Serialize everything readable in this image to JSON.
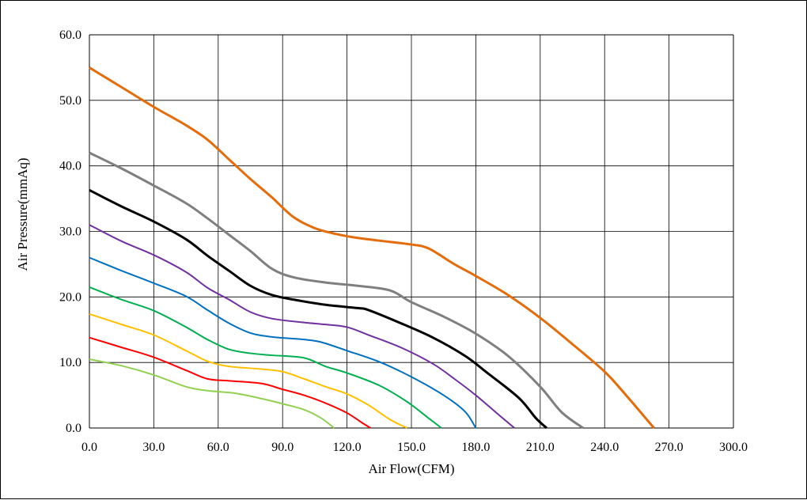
{
  "chart_data": {
    "type": "line",
    "title": "",
    "xlabel": "Air Flow(CFM)",
    "ylabel": "Air Pressure(mmAq)",
    "xlim": [
      0,
      300
    ],
    "ylim": [
      0,
      60
    ],
    "xticks": [
      "0.0",
      "30.0",
      "60.0",
      "90.0",
      "120.0",
      "150.0",
      "180.0",
      "210.0",
      "240.0",
      "270.0",
      "300.0"
    ],
    "yticks": [
      "0.0",
      "10.0",
      "20.0",
      "30.0",
      "40.0",
      "50.0",
      "60.0"
    ],
    "grid": true,
    "legend": "none",
    "series": [
      {
        "color": "#e46c0a",
        "points": [
          [
            0,
            55
          ],
          [
            15,
            52
          ],
          [
            30,
            49
          ],
          [
            45,
            46.2
          ],
          [
            55,
            44
          ],
          [
            65,
            41
          ],
          [
            75,
            38
          ],
          [
            85,
            35.2
          ],
          [
            95,
            32.2
          ],
          [
            105,
            30.5
          ],
          [
            115,
            29.6
          ],
          [
            125,
            29
          ],
          [
            140,
            28.4
          ],
          [
            150,
            28
          ],
          [
            158,
            27.4
          ],
          [
            170,
            25
          ],
          [
            180,
            23.2
          ],
          [
            195,
            20.3
          ],
          [
            210,
            16.8
          ],
          [
            225,
            12.8
          ],
          [
            240,
            8.6
          ],
          [
            250,
            5
          ],
          [
            263,
            0
          ]
        ]
      },
      {
        "color": "#7f7f7f",
        "points": [
          [
            0,
            42
          ],
          [
            15,
            39.6
          ],
          [
            30,
            37
          ],
          [
            45,
            34.3
          ],
          [
            55,
            32
          ],
          [
            65,
            29.5
          ],
          [
            75,
            27
          ],
          [
            85,
            24.3
          ],
          [
            95,
            23
          ],
          [
            110,
            22.2
          ],
          [
            125,
            21.7
          ],
          [
            140,
            21
          ],
          [
            150,
            19.2
          ],
          [
            165,
            17
          ],
          [
            180,
            14.4
          ],
          [
            195,
            11
          ],
          [
            210,
            6.3
          ],
          [
            220,
            2.4
          ],
          [
            230,
            0
          ]
        ]
      },
      {
        "color": "#000000",
        "points": [
          [
            0,
            36.3
          ],
          [
            15,
            33.8
          ],
          [
            30,
            31.5
          ],
          [
            45,
            28.8
          ],
          [
            55,
            26.3
          ],
          [
            65,
            24
          ],
          [
            75,
            21.7
          ],
          [
            85,
            20.3
          ],
          [
            95,
            19.6
          ],
          [
            110,
            18.8
          ],
          [
            125,
            18.3
          ],
          [
            130,
            18
          ],
          [
            145,
            16
          ],
          [
            160,
            13.8
          ],
          [
            175,
            11
          ],
          [
            185,
            8.5
          ],
          [
            200,
            4.6
          ],
          [
            208,
            1.5
          ],
          [
            213,
            0
          ]
        ]
      },
      {
        "color": "#7030a0",
        "points": [
          [
            0,
            31
          ],
          [
            15,
            28.5
          ],
          [
            30,
            26.4
          ],
          [
            45,
            23.8
          ],
          [
            55,
            21.4
          ],
          [
            65,
            19.6
          ],
          [
            75,
            17.7
          ],
          [
            85,
            16.7
          ],
          [
            100,
            16.1
          ],
          [
            110,
            15.8
          ],
          [
            120,
            15.4
          ],
          [
            130,
            14.2
          ],
          [
            145,
            12.3
          ],
          [
            160,
            9.8
          ],
          [
            170,
            7.5
          ],
          [
            180,
            5
          ],
          [
            190,
            2.2
          ],
          [
            198,
            0
          ]
        ]
      },
      {
        "color": "#0070c0",
        "points": [
          [
            0,
            26
          ],
          [
            15,
            24
          ],
          [
            30,
            22.1
          ],
          [
            45,
            20.1
          ],
          [
            55,
            18
          ],
          [
            65,
            16
          ],
          [
            75,
            14.5
          ],
          [
            85,
            13.9
          ],
          [
            100,
            13.5
          ],
          [
            108,
            13.1
          ],
          [
            120,
            11.8
          ],
          [
            135,
            10.1
          ],
          [
            150,
            7.8
          ],
          [
            165,
            5
          ],
          [
            175,
            2.5
          ],
          [
            180,
            0
          ]
        ]
      },
      {
        "color": "#00b050",
        "points": [
          [
            0,
            21.5
          ],
          [
            15,
            19.6
          ],
          [
            30,
            17.9
          ],
          [
            45,
            15.4
          ],
          [
            55,
            13.5
          ],
          [
            65,
            12
          ],
          [
            75,
            11.4
          ],
          [
            85,
            11.1
          ],
          [
            100,
            10.7
          ],
          [
            110,
            9.4
          ],
          [
            120,
            8.4
          ],
          [
            135,
            6.5
          ],
          [
            148,
            4
          ],
          [
            158,
            1.5
          ],
          [
            164,
            0
          ]
        ]
      },
      {
        "color": "#ffc000",
        "points": [
          [
            0,
            17.4
          ],
          [
            15,
            15.8
          ],
          [
            30,
            14.2
          ],
          [
            45,
            11.8
          ],
          [
            55,
            10.2
          ],
          [
            65,
            9.4
          ],
          [
            80,
            9
          ],
          [
            90,
            8.6
          ],
          [
            100,
            7.5
          ],
          [
            110,
            6.3
          ],
          [
            120,
            5.2
          ],
          [
            130,
            3.5
          ],
          [
            140,
            1.3
          ],
          [
            148,
            0
          ]
        ]
      },
      {
        "color": "#ff0000",
        "points": [
          [
            0,
            13.8
          ],
          [
            15,
            12.3
          ],
          [
            30,
            10.8
          ],
          [
            45,
            8.8
          ],
          [
            55,
            7.5
          ],
          [
            65,
            7.2
          ],
          [
            80,
            6.8
          ],
          [
            90,
            5.9
          ],
          [
            100,
            5
          ],
          [
            110,
            3.8
          ],
          [
            120,
            2.3
          ],
          [
            127,
            0.8
          ],
          [
            131,
            0
          ]
        ]
      },
      {
        "color": "#92d050",
        "points": [
          [
            0,
            10.5
          ],
          [
            15,
            9.5
          ],
          [
            30,
            8.1
          ],
          [
            45,
            6.3
          ],
          [
            55,
            5.7
          ],
          [
            68,
            5.3
          ],
          [
            80,
            4.5
          ],
          [
            90,
            3.7
          ],
          [
            100,
            2.8
          ],
          [
            108,
            1.5
          ],
          [
            114,
            0
          ]
        ]
      }
    ]
  }
}
